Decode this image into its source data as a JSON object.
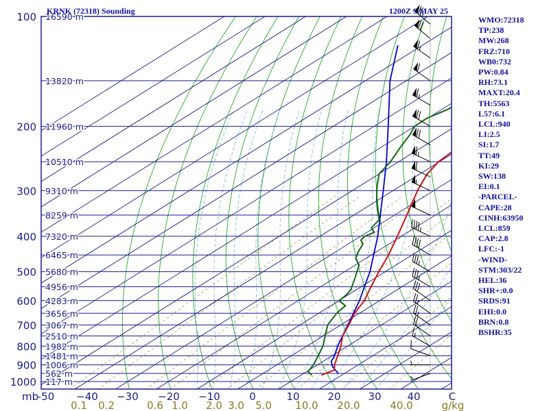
{
  "header": {
    "station": "KRNK (72318) Sounding",
    "time": "1200Z  9 MAY 25"
  },
  "stats": [
    "WMO:72318",
    "TP:238",
    "MW:268",
    "FRZ:710",
    "WB0:732",
    "PW:0.84",
    "RH:73.1",
    "MAXT:20.4",
    "TH:5563",
    "L57:6.1",
    "LCL:940",
    "LI:2.5",
    "SI:1.7",
    "TT:49",
    "KI:29",
    "SW:138",
    "EI:0.1",
    "-PARCEL-",
    "CAPE:28",
    "CINH:63950",
    "LCL:859",
    "CAP:2.8",
    "LFC:-1",
    "-WIND-",
    "STM:303/22",
    "HEL:36",
    "SHR+:0.0",
    "SRDS:91",
    "EHI:0.0",
    "BRN:0.8",
    "BSHR:35"
  ],
  "colors": {
    "frame": "#1a1a8c",
    "isobar": "#1a1a8c",
    "isotherm": "#1a1a8c",
    "dry_adiabat": "#22aa22",
    "moist_adiabat": "#88bbdd",
    "mixing_ratio": "#aa8833",
    "temperature": "#cc1111",
    "dewpoint": "#116611",
    "parcel": "#0000cc",
    "wind": "#000000",
    "stats_text": "#1010a0",
    "axis_text": "#1a1a8c",
    "mixing_text": "#8a7a20"
  },
  "chart_data": {
    "type": "skew-t",
    "pressure_levels": [
      100,
      200,
      300,
      400,
      500,
      600,
      700,
      800,
      900,
      1000
    ],
    "pressure_tick_labels": [
      "100",
      "200",
      "300",
      "400",
      "500",
      "600",
      "700",
      "800",
      "900",
      "1000"
    ],
    "pressure_unit": "mb",
    "height_labels": [
      {
        "p": 100,
        "label": "16590 m"
      },
      {
        "p": 150,
        "label": "13820 m"
      },
      {
        "p": 200,
        "label": "11960 m"
      },
      {
        "p": 250,
        "label": "10510 m"
      },
      {
        "p": 300,
        "label": "9310 m"
      },
      {
        "p": 350,
        "label": "8259 m"
      },
      {
        "p": 400,
        "label": "7320 m"
      },
      {
        "p": 450,
        "label": "6465 m"
      },
      {
        "p": 500,
        "label": "5680 m"
      },
      {
        "p": 550,
        "label": "4956 m"
      },
      {
        "p": 600,
        "label": "4283 m"
      },
      {
        "p": 650,
        "label": "3656 m"
      },
      {
        "p": 700,
        "label": "3067 m"
      },
      {
        "p": 750,
        "label": "2510 m"
      },
      {
        "p": 800,
        "label": "1982 m"
      },
      {
        "p": 850,
        "label": "1481 m"
      },
      {
        "p": 900,
        "label": "1006 m"
      },
      {
        "p": 950,
        "label": "562 m"
      },
      {
        "p": 1000,
        "label": "117 m"
      }
    ],
    "temperature_ticks": [
      -50,
      -40,
      -30,
      -20,
      -10,
      0,
      10,
      20,
      30,
      40
    ],
    "temperature_tick_labels": [
      "-50",
      "−40",
      "−30",
      "−20",
      "−10",
      "0",
      "10",
      "20",
      "30",
      "40"
    ],
    "temperature_unit": "C",
    "mixing_ratio_ticks": [
      0.1,
      0.2,
      0.6,
      1.0,
      2.0,
      3.0,
      5.0,
      10.0,
      20.0,
      40.0
    ],
    "mixing_ratio_tick_labels": [
      "0.1",
      "0.2",
      "0.6",
      "1.0",
      "2.0",
      "3.0",
      "5.0",
      "10.0",
      "20.0",
      "40.0"
    ],
    "mixing_ratio_unit": "g/kg",
    "temperature_profile": [
      {
        "p": 960,
        "t": 15.0
      },
      {
        "p": 950,
        "t": 15.4
      },
      {
        "p": 930,
        "t": 16.2
      },
      {
        "p": 900,
        "t": 14.2
      },
      {
        "p": 850,
        "t": 11.4
      },
      {
        "p": 800,
        "t": 8.4
      },
      {
        "p": 750,
        "t": 4.8
      },
      {
        "p": 700,
        "t": 2.0
      },
      {
        "p": 650,
        "t": -1.2
      },
      {
        "p": 600,
        "t": -3.8
      },
      {
        "p": 550,
        "t": -7.6
      },
      {
        "p": 500,
        "t": -11.6
      },
      {
        "p": 450,
        "t": -15.8
      },
      {
        "p": 400,
        "t": -21.0
      },
      {
        "p": 350,
        "t": -27.0
      },
      {
        "p": 300,
        "t": -34.0
      },
      {
        "p": 270,
        "t": -38.2
      },
      {
        "p": 250,
        "t": -40.2
      },
      {
        "p": 225,
        "t": -41.2
      },
      {
        "p": 200,
        "t": -44.0
      },
      {
        "p": 175,
        "t": -47.0
      },
      {
        "p": 150,
        "t": -50.0
      },
      {
        "p": 140,
        "t": -51.0
      },
      {
        "p": 125,
        "t": -53.5
      },
      {
        "p": 110,
        "t": -56.0
      },
      {
        "p": 100,
        "t": -57.5
      }
    ],
    "dewpoint_profile": [
      {
        "p": 960,
        "td": 12.6
      },
      {
        "p": 940,
        "td": 10.4
      },
      {
        "p": 900,
        "td": 9.0
      },
      {
        "p": 850,
        "td": 6.6
      },
      {
        "p": 800,
        "td": 4.0
      },
      {
        "p": 750,
        "td": 0.5
      },
      {
        "p": 700,
        "td": -3.2
      },
      {
        "p": 650,
        "td": -5.6
      },
      {
        "p": 620,
        "td": -6.4
      },
      {
        "p": 600,
        "td": -10.0
      },
      {
        "p": 580,
        "td": -10.4
      },
      {
        "p": 560,
        "td": -11.4
      },
      {
        "p": 520,
        "td": -15.0
      },
      {
        "p": 500,
        "td": -17.0
      },
      {
        "p": 480,
        "td": -19.0
      },
      {
        "p": 460,
        "td": -22.5
      },
      {
        "p": 440,
        "td": -24.6
      },
      {
        "p": 420,
        "td": -26.4
      },
      {
        "p": 410,
        "td": -28.4
      },
      {
        "p": 400,
        "td": -29.0
      },
      {
        "p": 390,
        "td": -28.2
      },
      {
        "p": 380,
        "td": -30.6
      },
      {
        "p": 360,
        "td": -32.0
      },
      {
        "p": 340,
        "td": -36.0
      },
      {
        "p": 320,
        "td": -40.0
      },
      {
        "p": 300,
        "td": -44.0
      },
      {
        "p": 290,
        "td": -46.0
      },
      {
        "p": 270,
        "td": -50.0
      },
      {
        "p": 250,
        "td": -52.0
      },
      {
        "p": 230,
        "td": -55.0
      },
      {
        "p": 210,
        "td": -58.0
      },
      {
        "p": 200,
        "td": -60.0
      },
      {
        "p": 190,
        "td": -60.2
      },
      {
        "p": 180,
        "td": -58.6
      },
      {
        "p": 170,
        "td": -58.0
      },
      {
        "p": 150,
        "td": -57.0
      },
      {
        "p": 130,
        "td": -55.5
      },
      {
        "p": 115,
        "td": -53.5
      },
      {
        "p": 100,
        "td": -51.0
      }
    ],
    "parcel_profile": [
      {
        "p": 950,
        "t": 18.5
      },
      {
        "p": 910,
        "t": 14.4
      },
      {
        "p": 880,
        "t": 12.0
      },
      {
        "p": 850,
        "t": 10.6
      },
      {
        "p": 800,
        "t": 7.6
      },
      {
        "p": 700,
        "t": 1.8
      },
      {
        "p": 600,
        "t": -5.0
      },
      {
        "p": 500,
        "t": -13.8
      },
      {
        "p": 400,
        "t": -25.8
      },
      {
        "p": 300,
        "t": -42.4
      },
      {
        "p": 250,
        "t": -53.0
      },
      {
        "p": 200,
        "t": -66.5
      },
      {
        "p": 150,
        "t": -84.0
      },
      {
        "p": 120,
        "t": -96.0
      }
    ],
    "wind_barbs": [
      {
        "p": 105,
        "dir": 310,
        "spd": 75
      },
      {
        "p": 115,
        "dir": 310,
        "spd": 70
      },
      {
        "p": 130,
        "dir": 305,
        "spd": 65
      },
      {
        "p": 150,
        "dir": 305,
        "spd": 60
      },
      {
        "p": 175,
        "dir": 300,
        "spd": 65
      },
      {
        "p": 200,
        "dir": 300,
        "spd": 70
      },
      {
        "p": 225,
        "dir": 300,
        "spd": 70
      },
      {
        "p": 250,
        "dir": 295,
        "spd": 65
      },
      {
        "p": 275,
        "dir": 295,
        "spd": 60
      },
      {
        "p": 300,
        "dir": 295,
        "spd": 55
      },
      {
        "p": 350,
        "dir": 295,
        "spd": 50
      },
      {
        "p": 400,
        "dir": 295,
        "spd": 45
      },
      {
        "p": 450,
        "dir": 300,
        "spd": 40
      },
      {
        "p": 500,
        "dir": 300,
        "spd": 35
      },
      {
        "p": 550,
        "dir": 300,
        "spd": 35
      },
      {
        "p": 600,
        "dir": 305,
        "spd": 30
      },
      {
        "p": 650,
        "dir": 305,
        "spd": 25
      },
      {
        "p": 700,
        "dir": 305,
        "spd": 25
      },
      {
        "p": 750,
        "dir": 305,
        "spd": 20
      },
      {
        "p": 800,
        "dir": 300,
        "spd": 15
      },
      {
        "p": 850,
        "dir": 290,
        "spd": 10
      },
      {
        "p": 900,
        "dir": 270,
        "spd": 5
      },
      {
        "p": 950,
        "dir": 250,
        "spd": 5
      }
    ]
  }
}
